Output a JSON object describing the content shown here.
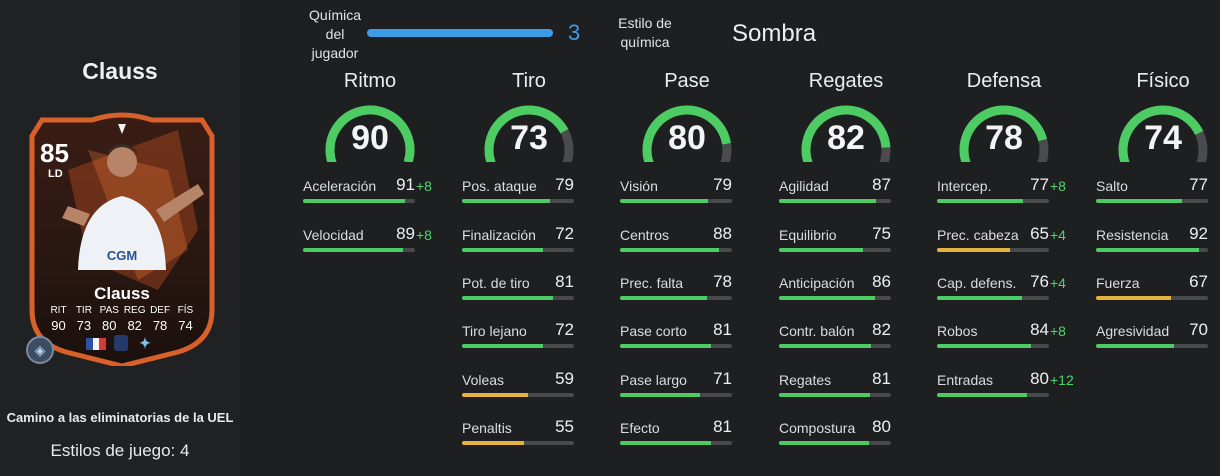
{
  "player": {
    "title": "Clauss",
    "card": {
      "rating": "85",
      "position": "LD",
      "name": "Clauss",
      "stats": [
        {
          "label": "RIT",
          "value": "90"
        },
        {
          "label": "TIR",
          "value": "73"
        },
        {
          "label": "PAS",
          "value": "80"
        },
        {
          "label": "REG",
          "value": "82"
        },
        {
          "label": "DEF",
          "value": "78"
        },
        {
          "label": "FÍS",
          "value": "74"
        }
      ]
    },
    "promo": "Camino a las eliminatorias de la UEL",
    "playstyles": "Estilos de juego: 4"
  },
  "chemistry": {
    "label_lines": [
      "Química",
      "del",
      "jugador"
    ],
    "value": "3",
    "fraction": 1.0,
    "style_label_lines": [
      "Estilo de",
      "química"
    ],
    "style_value": "Sombra"
  },
  "colors": {
    "green": "#4ccc62",
    "yellow": "#e5b33d",
    "chem_blue": "#3d9ce6",
    "boost": "#4ed66a",
    "card_orange": "#d8602a"
  },
  "categories": [
    {
      "title": "Ritmo",
      "value": 90,
      "attributes": [
        {
          "label": "Aceleración",
          "value": 91,
          "boost": "+8"
        },
        {
          "label": "Velocidad",
          "value": 89,
          "boost": "+8"
        }
      ]
    },
    {
      "title": "Tiro",
      "value": 73,
      "attributes": [
        {
          "label": "Pos. ataque",
          "value": 79,
          "boost": ""
        },
        {
          "label": "Finalización",
          "value": 72,
          "boost": ""
        },
        {
          "label": "Pot. de tiro",
          "value": 81,
          "boost": ""
        },
        {
          "label": "Tiro lejano",
          "value": 72,
          "boost": ""
        },
        {
          "label": "Voleas",
          "value": 59,
          "boost": ""
        },
        {
          "label": "Penaltis",
          "value": 55,
          "boost": ""
        }
      ]
    },
    {
      "title": "Pase",
      "value": 80,
      "attributes": [
        {
          "label": "Visión",
          "value": 79,
          "boost": ""
        },
        {
          "label": "Centros",
          "value": 88,
          "boost": ""
        },
        {
          "label": "Prec. falta",
          "value": 78,
          "boost": ""
        },
        {
          "label": "Pase corto",
          "value": 81,
          "boost": ""
        },
        {
          "label": "Pase largo",
          "value": 71,
          "boost": ""
        },
        {
          "label": "Efecto",
          "value": 81,
          "boost": ""
        }
      ]
    },
    {
      "title": "Regates",
      "value": 82,
      "attributes": [
        {
          "label": "Agilidad",
          "value": 87,
          "boost": ""
        },
        {
          "label": "Equilibrio",
          "value": 75,
          "boost": ""
        },
        {
          "label": "Anticipación",
          "value": 86,
          "boost": ""
        },
        {
          "label": "Contr. balón",
          "value": 82,
          "boost": ""
        },
        {
          "label": "Regates",
          "value": 81,
          "boost": ""
        },
        {
          "label": "Compostura",
          "value": 80,
          "boost": ""
        }
      ]
    },
    {
      "title": "Defensa",
      "value": 78,
      "attributes": [
        {
          "label": "Intercep.",
          "value": 77,
          "boost": "+8"
        },
        {
          "label": "Prec. cabeza",
          "value": 65,
          "boost": "+4"
        },
        {
          "label": "Cap. defens.",
          "value": 76,
          "boost": "+4"
        },
        {
          "label": "Robos",
          "value": 84,
          "boost": "+8"
        },
        {
          "label": "Entradas",
          "value": 80,
          "boost": "+12"
        }
      ]
    },
    {
      "title": "Físico",
      "value": 74,
      "attributes": [
        {
          "label": "Salto",
          "value": 77,
          "boost": ""
        },
        {
          "label": "Resistencia",
          "value": 92,
          "boost": ""
        },
        {
          "label": "Fuerza",
          "value": 67,
          "boost": ""
        },
        {
          "label": "Agresividad",
          "value": 70,
          "boost": ""
        }
      ]
    }
  ]
}
